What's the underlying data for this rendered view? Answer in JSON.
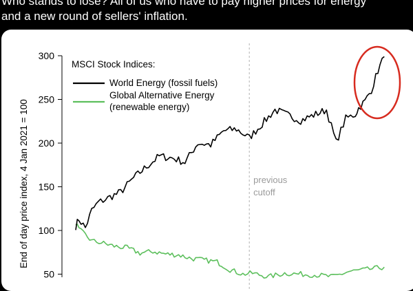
{
  "post": {
    "line1": "Who stands to lose? All of us who have to pay higher prices for energy",
    "line2": "and a new round of sellers' inflation."
  },
  "colors": {
    "fossil": "#000000",
    "renewable": "#5cbf5c",
    "highlight": "#d72b1f",
    "cutoff": "#b0b0b0"
  },
  "chart_data": {
    "type": "line",
    "title": "",
    "ylabel": "End of day price index, 4 Jan 2021 = 100",
    "xlabel": "",
    "ylim": [
      50,
      300
    ],
    "yticks": [
      50,
      100,
      150,
      200,
      250,
      300
    ],
    "legend_title": "MSCI Stock Indices:",
    "legend_position": "top-left",
    "annotation": {
      "text_line1": "previous",
      "text_line2": "cutoff",
      "x": 0.54
    },
    "highlight": {
      "shape": "ellipse",
      "around": "end of World Energy series"
    },
    "series": [
      {
        "name_line1": "World Energy (fossil fuels)",
        "name_line2": "",
        "x": [
          0,
          0.01,
          0.03,
          0.05,
          0.07,
          0.1,
          0.14,
          0.18,
          0.22,
          0.26,
          0.3,
          0.34,
          0.38,
          0.42,
          0.46,
          0.5,
          0.54,
          0.58,
          0.62,
          0.66,
          0.7,
          0.74,
          0.78,
          0.81,
          0.84,
          0.87,
          0.88,
          0.9,
          0.92,
          0.94,
          0.96
        ],
        "values": [
          105,
          113,
          103,
          123,
          132,
          137,
          144,
          160,
          173,
          185,
          183,
          178,
          200,
          198,
          214,
          216,
          206,
          222,
          238,
          232,
          226,
          232,
          238,
          201,
          228,
          233,
          240,
          248,
          261,
          283,
          299
        ]
      },
      {
        "name_line1": "Global Alternative Energy",
        "name_line2": "(renewable energy)",
        "x": [
          0,
          0.01,
          0.03,
          0.05,
          0.08,
          0.12,
          0.16,
          0.2,
          0.24,
          0.28,
          0.32,
          0.36,
          0.4,
          0.44,
          0.48,
          0.52,
          0.55,
          0.6,
          0.65,
          0.7,
          0.75,
          0.8,
          0.85,
          0.9,
          0.96
        ],
        "values": [
          109,
          101,
          95,
          88,
          86,
          82,
          80,
          74,
          76,
          73,
          72,
          68,
          66,
          64,
          55,
          50,
          51,
          47,
          51,
          50,
          49,
          47,
          53,
          55,
          58
        ]
      }
    ]
  }
}
